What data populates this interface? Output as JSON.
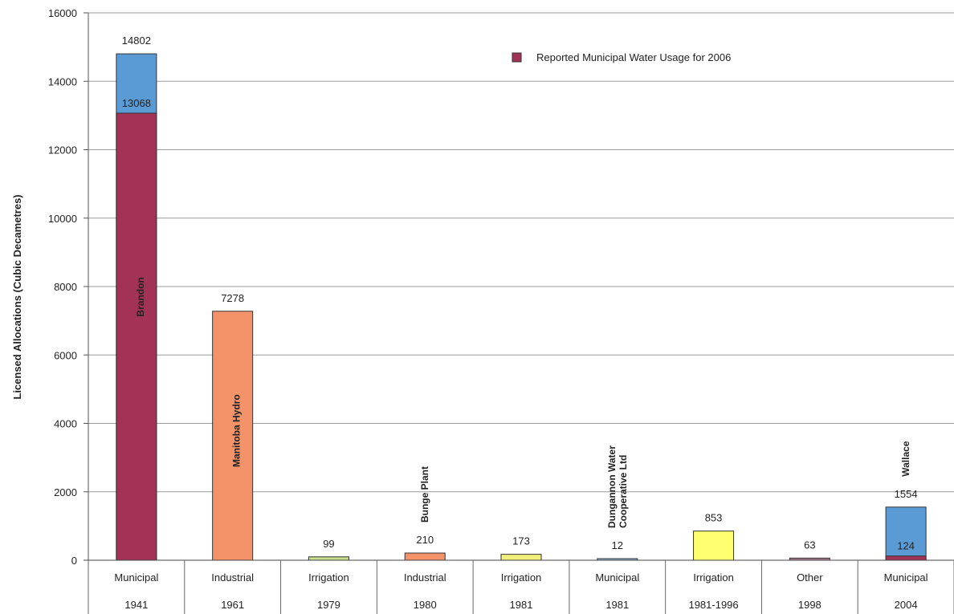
{
  "chart_data": {
    "type": "bar",
    "title": "",
    "ylabel": "Licensed Allocations (Cubic Decametres)",
    "xlabel": "",
    "ylim": [
      0,
      16000
    ],
    "yticks": [
      "0",
      "2000",
      "4000",
      "6000",
      "8000",
      "10000",
      "12000",
      "14000",
      "16000"
    ],
    "yticks_values": [
      0,
      2000,
      4000,
      6000,
      8000,
      10000,
      12000,
      14000,
      16000
    ],
    "grid": true,
    "legend": {
      "position": "top-right",
      "entries": [
        {
          "label": "Reported Municipal Water Usage for 2006",
          "color": "#a33356"
        }
      ]
    },
    "categories": [
      {
        "type": "Municipal",
        "year": "1941",
        "label": "Brandon",
        "total": 14802,
        "total_label": "14802",
        "reported": 13068,
        "reported_label": "13068",
        "color": "#5b9bd5",
        "reported_color": "#a33356"
      },
      {
        "type": "Industrial",
        "year": "1961",
        "label": "Manitoba Hydro",
        "total": 7278,
        "total_label": "7278",
        "color": "#f4936a"
      },
      {
        "type": "Irrigation",
        "year": "1979",
        "label": "",
        "total": 99,
        "total_label": "99",
        "color": "#c8e08a"
      },
      {
        "type": "Industrial",
        "year": "1980",
        "label": "Bunge Plant",
        "total": 210,
        "total_label": "210",
        "color": "#f4936a"
      },
      {
        "type": "Irrigation",
        "year": "1981",
        "label": "",
        "total": 173,
        "total_label": "173",
        "color": "#f0f07a"
      },
      {
        "type": "Municipal",
        "year": "1981",
        "label": "Dungannon Water Cooperative Ltd",
        "label_lines": [
          "Dungannon Water",
          "Cooperative Ltd"
        ],
        "total": 12,
        "total_label": "12",
        "color": "#8fb4dd"
      },
      {
        "type": "Irrigation",
        "year": "1981-1996",
        "label": "",
        "total": 853,
        "total_label": "853",
        "color": "#ffff70"
      },
      {
        "type": "Other",
        "year": "1998",
        "label": "",
        "total": 63,
        "total_label": "63",
        "color": "#a9788f"
      },
      {
        "type": "Municipal",
        "year": "2004",
        "label": "Wallace",
        "total": 1554,
        "total_label": "1554",
        "reported": 124,
        "reported_label": "124",
        "color": "#5b9bd5",
        "reported_color": "#a33356"
      }
    ]
  }
}
